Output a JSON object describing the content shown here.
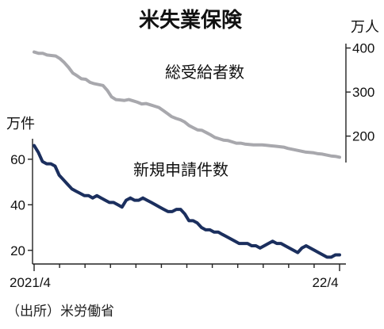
{
  "chart_data": [
    {
      "type": "line",
      "title": "米失業保険",
      "source": "（出所）米労働省",
      "x_start": "2021/4",
      "x_end": "22/4",
      "xticks": [
        "2021/4",
        "22/4"
      ],
      "top_panel": {
        "series_name": "総受給者数",
        "unit": "万人",
        "axis_side": "right",
        "ylim": [
          140,
          410
        ],
        "yticks": [
          200,
          300,
          400
        ],
        "color": "#a8a8ad",
        "values": [
          391,
          388,
          388,
          384,
          383,
          382,
          376,
          367,
          356,
          343,
          337,
          330,
          329,
          322,
          319,
          317,
          315,
          304,
          289,
          283,
          282,
          281,
          283,
          280,
          277,
          273,
          274,
          271,
          268,
          265,
          258,
          251,
          244,
          240,
          237,
          232,
          224,
          219,
          214,
          213,
          208,
          203,
          197,
          194,
          191,
          190,
          187,
          184,
          184,
          182,
          181,
          180,
          180,
          180,
          179,
          178,
          177,
          176,
          175,
          172,
          170,
          168,
          166,
          164,
          163,
          162,
          160,
          159,
          157,
          155,
          154,
          152
        ]
      },
      "bottom_panel": {
        "series_name": "新規申請件数",
        "unit": "万件",
        "axis_side": "left",
        "ylim": [
          14,
          69
        ],
        "yticks": [
          20,
          40,
          60
        ],
        "color": "#1b2f5e",
        "values": [
          66,
          63,
          59,
          58,
          58,
          57,
          53,
          51,
          49,
          47,
          46,
          45,
          44,
          44,
          43,
          44,
          43,
          42,
          41,
          41,
          40,
          39,
          42,
          43,
          42,
          42,
          43,
          42,
          41,
          40,
          39,
          38,
          37,
          37,
          38,
          38,
          36,
          33,
          33,
          32,
          30,
          29,
          29,
          28,
          28,
          27,
          26,
          25,
          24,
          23,
          23,
          23,
          22,
          22,
          21,
          22,
          23,
          24,
          23,
          23,
          22,
          21,
          20,
          19,
          21,
          22,
          21,
          20,
          19,
          18,
          17,
          17,
          18,
          18
        ]
      }
    }
  ]
}
